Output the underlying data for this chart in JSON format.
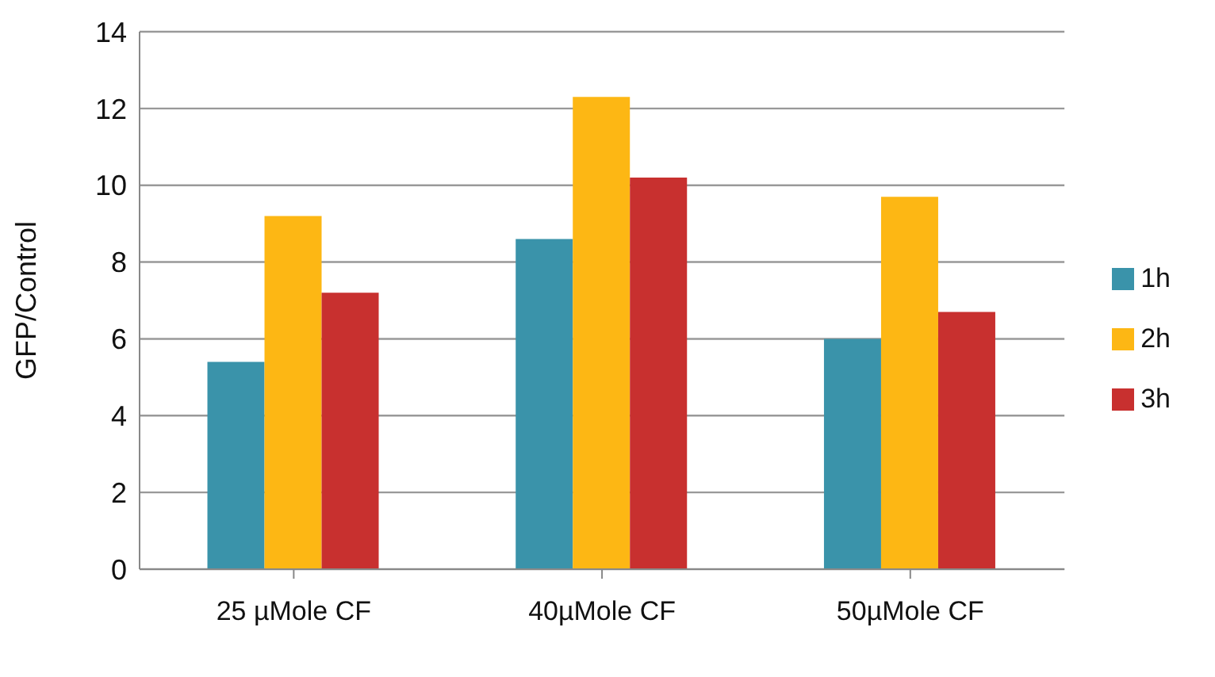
{
  "chart_data": {
    "type": "bar",
    "ylabel": "GFP/Control",
    "categories": [
      "25 µMole CF",
      "40µMole CF",
      "50µMole CF"
    ],
    "series": [
      {
        "name": "1h",
        "color": "#3a93aa",
        "values": [
          5.4,
          8.6,
          6.0
        ]
      },
      {
        "name": "2h",
        "color": "#fdb714",
        "values": [
          9.2,
          12.3,
          9.7
        ]
      },
      {
        "name": "3h",
        "color": "#c8302f",
        "values": [
          7.2,
          10.2,
          6.7
        ]
      }
    ],
    "ylim": [
      0,
      14
    ],
    "yticks": [
      0,
      2,
      4,
      6,
      8,
      10,
      12,
      14
    ],
    "grid": "y",
    "legend": "right"
  }
}
